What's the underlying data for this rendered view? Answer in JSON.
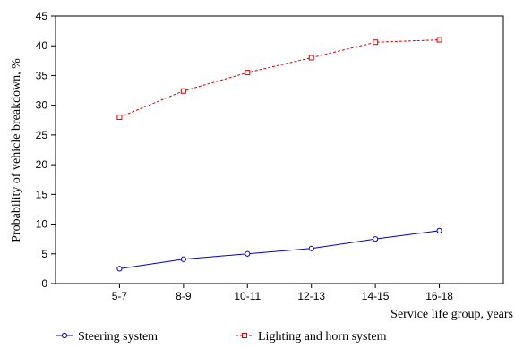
{
  "chart_data": {
    "type": "line",
    "title": "",
    "xlabel": "Service life group, years",
    "ylabel": "Probability of vehicle breakdown, %",
    "categories": [
      "5-7",
      "8-9",
      "10-11",
      "12-13",
      "14-15",
      "16-18"
    ],
    "ylim": [
      0,
      45
    ],
    "yticks": [
      0,
      5,
      10,
      15,
      20,
      25,
      30,
      35,
      40,
      45
    ],
    "grid": false,
    "legend_position": "bottom",
    "series": [
      {
        "name": "Steering system",
        "values": [
          2.5,
          4.1,
          5.0,
          5.9,
          7.5,
          8.9
        ],
        "color": "#0000cc",
        "line_style": "solid",
        "marker": "circle"
      },
      {
        "name": "Lighting and horn system",
        "values": [
          28.0,
          32.4,
          35.5,
          38.0,
          40.6,
          41.0
        ],
        "color": "#dd0000",
        "line_style": "dashed",
        "marker": "square"
      }
    ]
  }
}
